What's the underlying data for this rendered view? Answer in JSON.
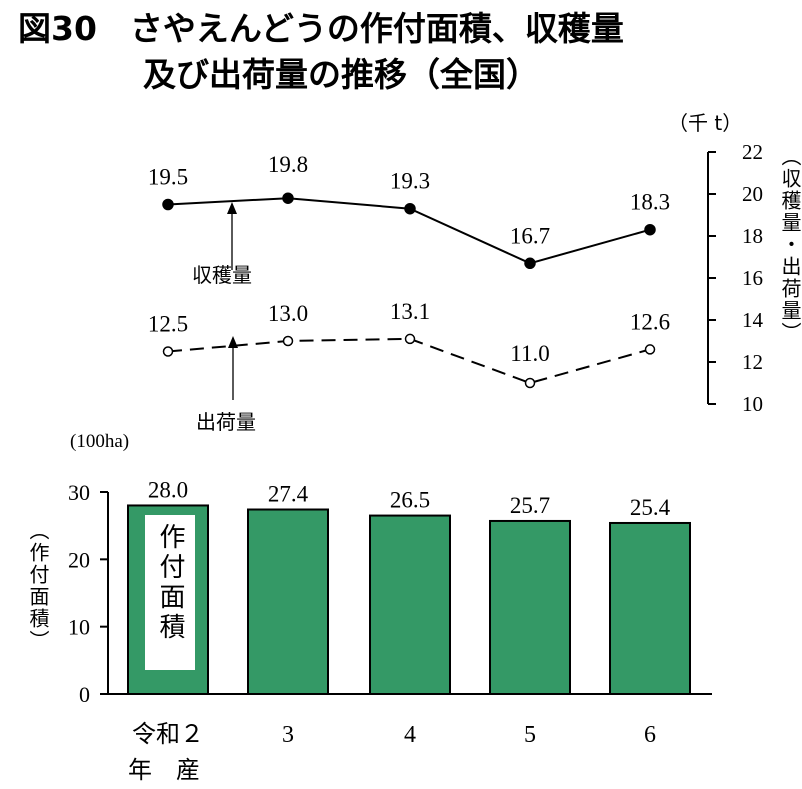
{
  "title": {
    "line1": "図30　さやえんどうの作付面積、収穫量",
    "line2": "及び出荷量の推移（全国）"
  },
  "colors": {
    "bar": "#349966",
    "line": "#000000",
    "inset_bg": "#ffffff"
  },
  "chart_data": [
    {
      "type": "line",
      "categories": [
        "令和２",
        "3",
        "4",
        "5",
        "6"
      ],
      "series": [
        {
          "name": "収穫量",
          "values": [
            19.5,
            19.8,
            19.3,
            16.7,
            18.3
          ],
          "labels": [
            "19.5",
            "19.8",
            "19.3",
            "16.7",
            "18.3"
          ],
          "style": "solid",
          "marker": "filled-circle"
        },
        {
          "name": "出荷量",
          "values": [
            12.5,
            13.0,
            13.1,
            11.0,
            12.6
          ],
          "labels": [
            "12.5",
            "13.0",
            "13.1",
            "11.0",
            "12.6"
          ],
          "style": "dashed",
          "marker": "open-circle"
        }
      ],
      "ylim": [
        10,
        22
      ],
      "yticks": [
        10,
        12,
        14,
        16,
        18,
        20,
        22
      ],
      "unit": "（千 t）",
      "ylabel": "（収穫量・出荷量）",
      "annotations": [
        "収穫量",
        "出荷量"
      ],
      "y_axis_side": "right"
    },
    {
      "type": "bar",
      "categories": [
        "令和２",
        "3",
        "4",
        "5",
        "6"
      ],
      "values": [
        28.0,
        27.4,
        26.5,
        25.7,
        25.4
      ],
      "labels": [
        "28.0",
        "27.4",
        "26.5",
        "25.7",
        "25.4"
      ],
      "ylim": [
        0,
        30
      ],
      "yticks": [
        0,
        10,
        20,
        30
      ],
      "unit": "(100ha)",
      "ylabel": "（作付面積）",
      "inset_label": "作付面積",
      "x_caption": "年　産"
    }
  ]
}
